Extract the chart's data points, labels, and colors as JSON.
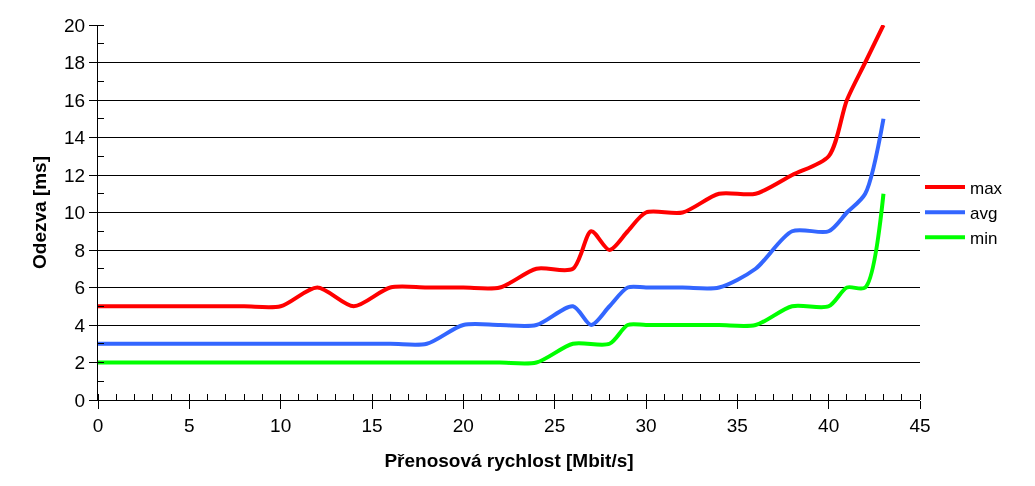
{
  "chart_data": {
    "type": "line",
    "xlabel": "Přenosová rychlost [Mbit/s]",
    "ylabel": "Odezva [ms]",
    "xlim": [
      0,
      45
    ],
    "xticks": [
      0,
      5,
      10,
      15,
      20,
      25,
      30,
      35,
      40,
      45
    ],
    "ylim": [
      0,
      20
    ],
    "yticks": [
      0,
      2,
      4,
      6,
      8,
      10,
      12,
      14,
      16,
      18,
      20
    ],
    "grid": "y",
    "legend": "right",
    "marker": "none",
    "line_style": "solid",
    "series": [
      {
        "name": "max",
        "color": "#ff0000",
        "x": [
          0,
          2,
          4,
          6,
          8,
          10,
          12,
          14,
          16,
          18,
          20,
          22,
          24,
          26,
          27,
          28,
          29,
          30,
          32,
          34,
          36,
          38,
          40,
          41,
          42,
          43
        ],
        "values": [
          5,
          5,
          5,
          5,
          5,
          5,
          6,
          5,
          6,
          6,
          6,
          6,
          7,
          7,
          9,
          8,
          9,
          10,
          10,
          11,
          11,
          12,
          13,
          16,
          18,
          20
        ]
      },
      {
        "name": "avg",
        "color": "#3366ff",
        "x": [
          0,
          4,
          8,
          12,
          16,
          18,
          20,
          22,
          24,
          26,
          27,
          28,
          29,
          30,
          32,
          34,
          36,
          38,
          40,
          41,
          42,
          43
        ],
        "values": [
          3,
          3,
          3,
          3,
          3,
          3,
          4,
          4,
          4,
          5,
          4,
          5,
          6,
          6,
          6,
          6,
          7,
          9,
          9,
          10,
          11,
          15
        ]
      },
      {
        "name": "min",
        "color": "#00ff00",
        "x": [
          0,
          4,
          8,
          12,
          16,
          20,
          22,
          24,
          26,
          28,
          29,
          30,
          32,
          34,
          36,
          38,
          40,
          41,
          42,
          43
        ],
        "values": [
          2,
          2,
          2,
          2,
          2,
          2,
          2,
          2,
          3,
          3,
          4,
          4,
          4,
          4,
          4,
          5,
          5,
          6,
          6,
          11
        ]
      }
    ]
  }
}
